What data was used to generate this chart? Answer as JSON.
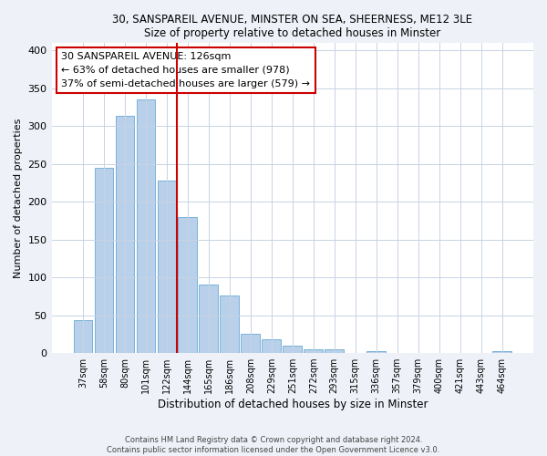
{
  "title1": "30, SANSPAREIL AVENUE, MINSTER ON SEA, SHEERNESS, ME12 3LE",
  "title2": "Size of property relative to detached houses in Minster",
  "xlabel": "Distribution of detached houses by size in Minster",
  "ylabel": "Number of detached properties",
  "bar_labels": [
    "37sqm",
    "58sqm",
    "80sqm",
    "101sqm",
    "122sqm",
    "144sqm",
    "165sqm",
    "186sqm",
    "208sqm",
    "229sqm",
    "251sqm",
    "272sqm",
    "293sqm",
    "315sqm",
    "336sqm",
    "357sqm",
    "379sqm",
    "400sqm",
    "421sqm",
    "443sqm",
    "464sqm"
  ],
  "bar_values": [
    44,
    245,
    313,
    335,
    228,
    180,
    91,
    76,
    25,
    18,
    10,
    5,
    5,
    0,
    2,
    0,
    0,
    0,
    0,
    0,
    2
  ],
  "bar_color": "#b8d0ea",
  "bar_edgecolor": "#6aaad4",
  "vline_index": 4.5,
  "vline_color": "#cc0000",
  "annotation_text": "30 SANSPAREIL AVENUE: 126sqm\n← 63% of detached houses are smaller (978)\n37% of semi-detached houses are larger (579) →",
  "annotation_box_color": "#ffffff",
  "annotation_box_edgecolor": "#cc0000",
  "ylim": [
    0,
    410
  ],
  "yticks": [
    0,
    50,
    100,
    150,
    200,
    250,
    300,
    350,
    400
  ],
  "footer1": "Contains HM Land Registry data © Crown copyright and database right 2024.",
  "footer2": "Contains public sector information licensed under the Open Government Licence v3.0.",
  "bg_color": "#eef2f8",
  "plot_bg_color": "#ffffff",
  "grid_color": "#c8d4e4"
}
